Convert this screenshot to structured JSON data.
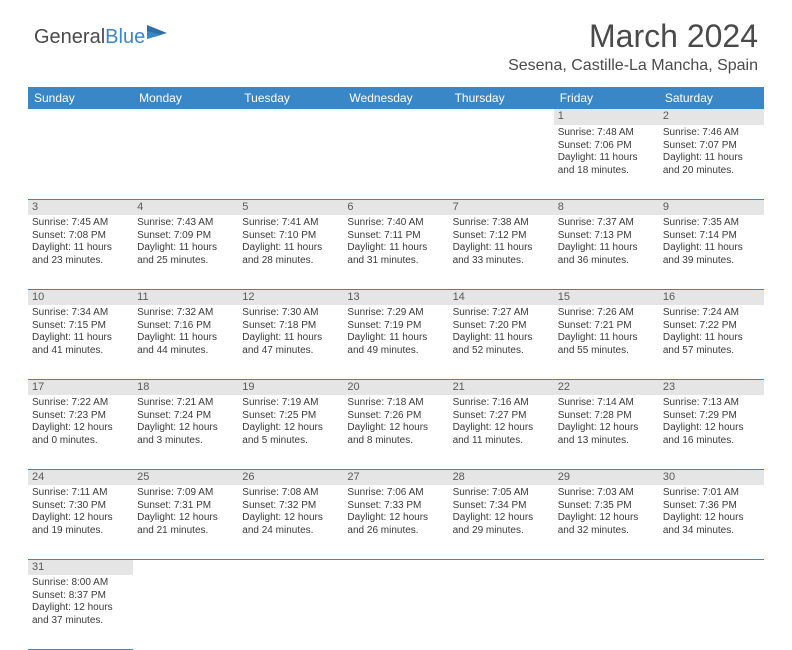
{
  "logo": {
    "text1": "General",
    "text2": "Blue"
  },
  "title": "March 2024",
  "location": "Sesena, Castille-La Mancha, Spain",
  "colors": {
    "header_bg": "#3a87c8",
    "header_text": "#ffffff",
    "daynum_bg": "#e5e5e5",
    "daynum_text": "#5a5a5a",
    "cell_text": "#3a3a3a",
    "border": "#3a87c8",
    "logo_gray": "#4a4a4a",
    "logo_blue": "#3a87c8"
  },
  "weekdays": [
    "Sunday",
    "Monday",
    "Tuesday",
    "Wednesday",
    "Thursday",
    "Friday",
    "Saturday"
  ],
  "weeks": [
    [
      null,
      null,
      null,
      null,
      null,
      {
        "d": "1",
        "sr": "7:48 AM",
        "ss": "7:06 PM",
        "dl": "11 hours and 18 minutes."
      },
      {
        "d": "2",
        "sr": "7:46 AM",
        "ss": "7:07 PM",
        "dl": "11 hours and 20 minutes."
      }
    ],
    [
      {
        "d": "3",
        "sr": "7:45 AM",
        "ss": "7:08 PM",
        "dl": "11 hours and 23 minutes."
      },
      {
        "d": "4",
        "sr": "7:43 AM",
        "ss": "7:09 PM",
        "dl": "11 hours and 25 minutes."
      },
      {
        "d": "5",
        "sr": "7:41 AM",
        "ss": "7:10 PM",
        "dl": "11 hours and 28 minutes."
      },
      {
        "d": "6",
        "sr": "7:40 AM",
        "ss": "7:11 PM",
        "dl": "11 hours and 31 minutes."
      },
      {
        "d": "7",
        "sr": "7:38 AM",
        "ss": "7:12 PM",
        "dl": "11 hours and 33 minutes."
      },
      {
        "d": "8",
        "sr": "7:37 AM",
        "ss": "7:13 PM",
        "dl": "11 hours and 36 minutes."
      },
      {
        "d": "9",
        "sr": "7:35 AM",
        "ss": "7:14 PM",
        "dl": "11 hours and 39 minutes."
      }
    ],
    [
      {
        "d": "10",
        "sr": "7:34 AM",
        "ss": "7:15 PM",
        "dl": "11 hours and 41 minutes."
      },
      {
        "d": "11",
        "sr": "7:32 AM",
        "ss": "7:16 PM",
        "dl": "11 hours and 44 minutes."
      },
      {
        "d": "12",
        "sr": "7:30 AM",
        "ss": "7:18 PM",
        "dl": "11 hours and 47 minutes."
      },
      {
        "d": "13",
        "sr": "7:29 AM",
        "ss": "7:19 PM",
        "dl": "11 hours and 49 minutes."
      },
      {
        "d": "14",
        "sr": "7:27 AM",
        "ss": "7:20 PM",
        "dl": "11 hours and 52 minutes."
      },
      {
        "d": "15",
        "sr": "7:26 AM",
        "ss": "7:21 PM",
        "dl": "11 hours and 55 minutes."
      },
      {
        "d": "16",
        "sr": "7:24 AM",
        "ss": "7:22 PM",
        "dl": "11 hours and 57 minutes."
      }
    ],
    [
      {
        "d": "17",
        "sr": "7:22 AM",
        "ss": "7:23 PM",
        "dl": "12 hours and 0 minutes."
      },
      {
        "d": "18",
        "sr": "7:21 AM",
        "ss": "7:24 PM",
        "dl": "12 hours and 3 minutes."
      },
      {
        "d": "19",
        "sr": "7:19 AM",
        "ss": "7:25 PM",
        "dl": "12 hours and 5 minutes."
      },
      {
        "d": "20",
        "sr": "7:18 AM",
        "ss": "7:26 PM",
        "dl": "12 hours and 8 minutes."
      },
      {
        "d": "21",
        "sr": "7:16 AM",
        "ss": "7:27 PM",
        "dl": "12 hours and 11 minutes."
      },
      {
        "d": "22",
        "sr": "7:14 AM",
        "ss": "7:28 PM",
        "dl": "12 hours and 13 minutes."
      },
      {
        "d": "23",
        "sr": "7:13 AM",
        "ss": "7:29 PM",
        "dl": "12 hours and 16 minutes."
      }
    ],
    [
      {
        "d": "24",
        "sr": "7:11 AM",
        "ss": "7:30 PM",
        "dl": "12 hours and 19 minutes."
      },
      {
        "d": "25",
        "sr": "7:09 AM",
        "ss": "7:31 PM",
        "dl": "12 hours and 21 minutes."
      },
      {
        "d": "26",
        "sr": "7:08 AM",
        "ss": "7:32 PM",
        "dl": "12 hours and 24 minutes."
      },
      {
        "d": "27",
        "sr": "7:06 AM",
        "ss": "7:33 PM",
        "dl": "12 hours and 26 minutes."
      },
      {
        "d": "28",
        "sr": "7:05 AM",
        "ss": "7:34 PM",
        "dl": "12 hours and 29 minutes."
      },
      {
        "d": "29",
        "sr": "7:03 AM",
        "ss": "7:35 PM",
        "dl": "12 hours and 32 minutes."
      },
      {
        "d": "30",
        "sr": "7:01 AM",
        "ss": "7:36 PM",
        "dl": "12 hours and 34 minutes."
      }
    ],
    [
      {
        "d": "31",
        "sr": "8:00 AM",
        "ss": "8:37 PM",
        "dl": "12 hours and 37 minutes."
      },
      null,
      null,
      null,
      null,
      null,
      null
    ]
  ],
  "labels": {
    "sunrise": "Sunrise:",
    "sunset": "Sunset:",
    "daylight": "Daylight:"
  }
}
